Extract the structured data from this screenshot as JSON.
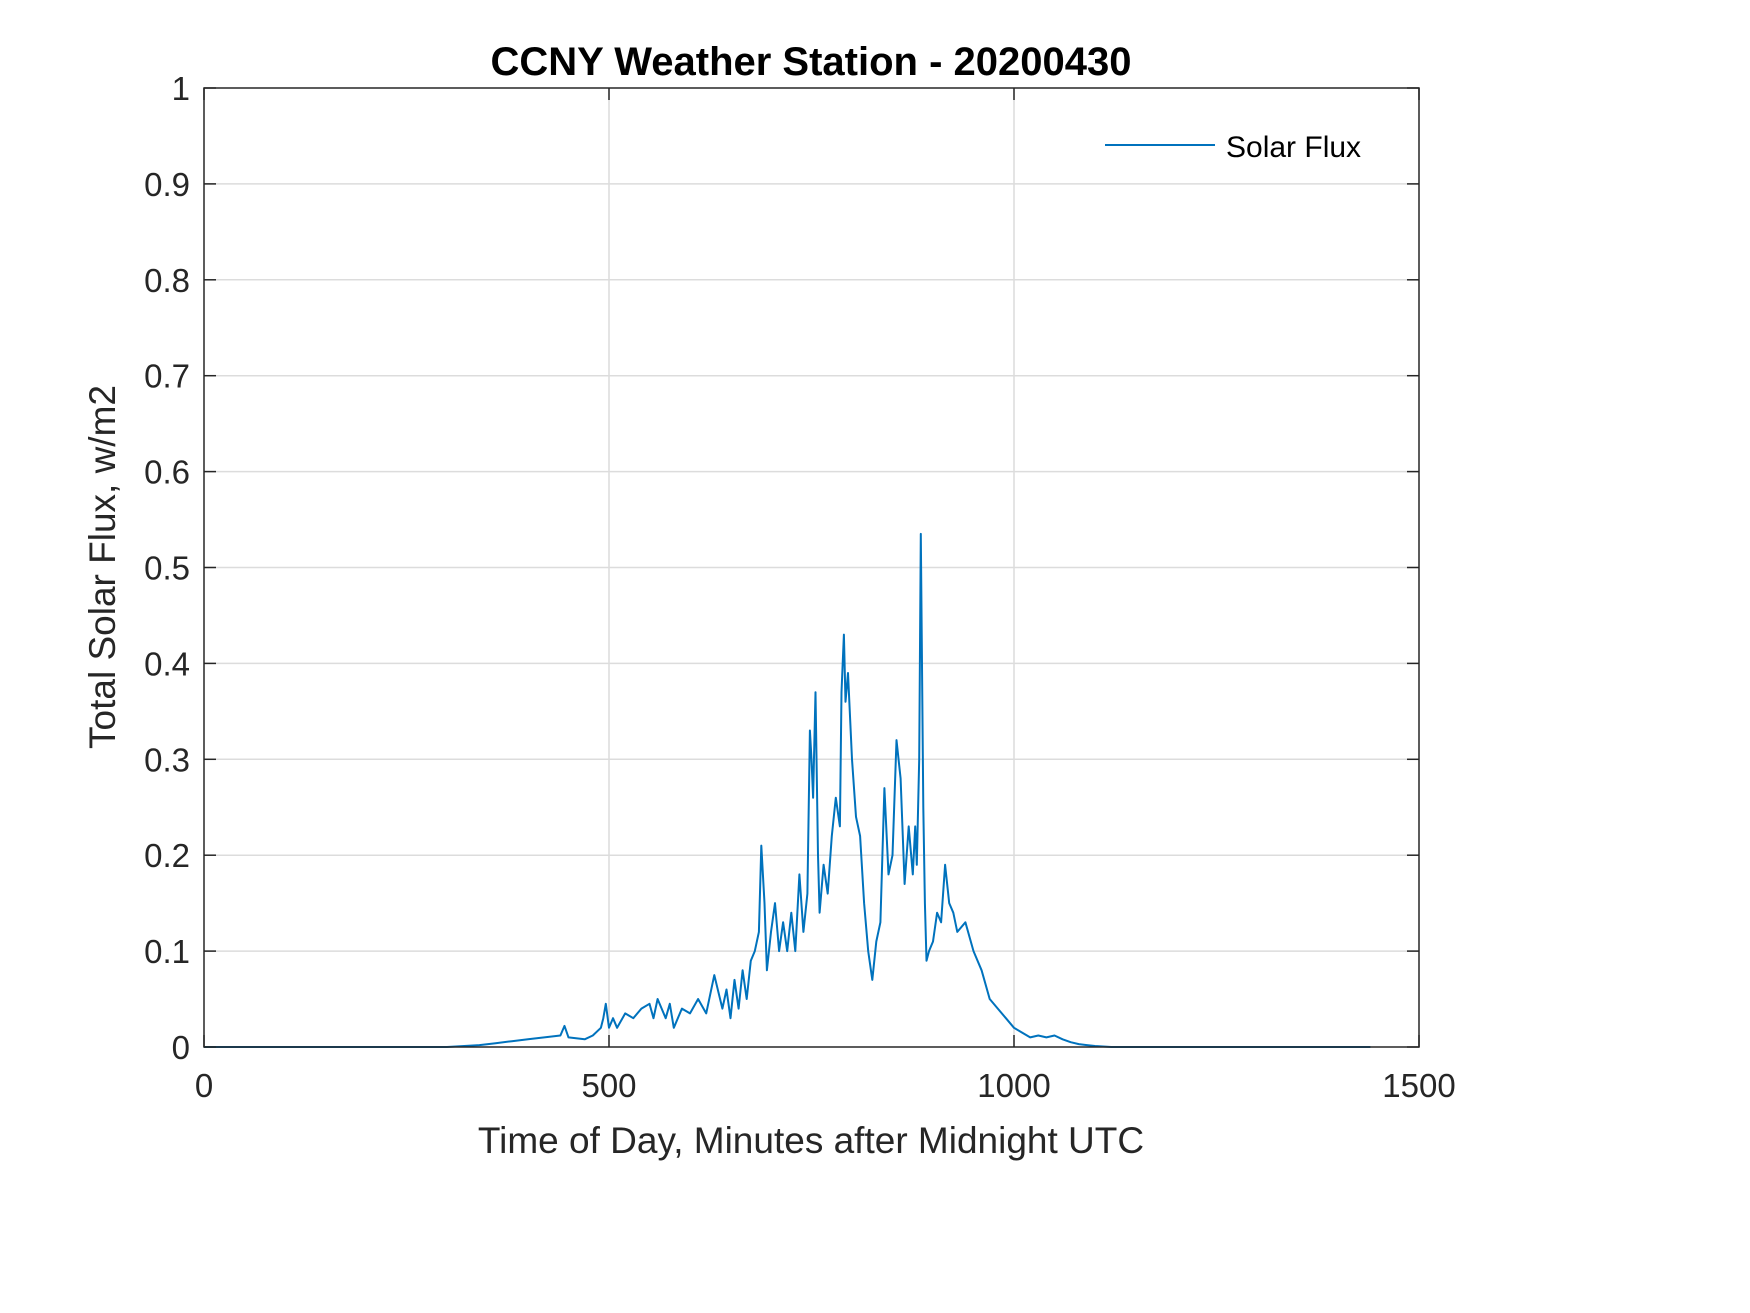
{
  "colors": {
    "series": "#0072BD",
    "axis": "#262626",
    "grid": "#dcdcdc"
  },
  "chart_data": {
    "type": "line",
    "title": "CCNY Weather Station - 20200430",
    "xlabel": "Time of Day, Minutes after Midnight UTC",
    "ylabel": "Total Solar Flux, w/m2",
    "xlim": [
      0,
      1500
    ],
    "ylim": [
      0,
      1
    ],
    "xticks": [
      0,
      500,
      1000,
      1500
    ],
    "xtick_labels": [
      "0",
      "500",
      "1000",
      "1500"
    ],
    "yticks": [
      0,
      0.1,
      0.2,
      0.3,
      0.4,
      0.5,
      0.6,
      0.7,
      0.8,
      0.9,
      1
    ],
    "ytick_labels": [
      "0",
      "0.1",
      "0.2",
      "0.3",
      "0.4",
      "0.5",
      "0.6",
      "0.7",
      "0.8",
      "0.9",
      "1"
    ],
    "grid": true,
    "legend_position": "top-right",
    "series": [
      {
        "name": "Solar Flux",
        "x": [
          0,
          300,
          340,
          360,
          380,
          400,
          420,
          440,
          445,
          450,
          470,
          480,
          490,
          493,
          496,
          500,
          505,
          510,
          520,
          530,
          540,
          550,
          555,
          560,
          570,
          575,
          580,
          590,
          600,
          610,
          620,
          630,
          640,
          645,
          650,
          655,
          660,
          665,
          670,
          675,
          680,
          685,
          688,
          690,
          692,
          695,
          700,
          705,
          710,
          715,
          720,
          725,
          730,
          735,
          740,
          745,
          748,
          750,
          752,
          755,
          758,
          760,
          765,
          770,
          775,
          780,
          785,
          787,
          790,
          792,
          795,
          800,
          805,
          810,
          815,
          820,
          825,
          830,
          835,
          840,
          845,
          850,
          855,
          860,
          865,
          870,
          875,
          878,
          880,
          883,
          885,
          888,
          890,
          892,
          895,
          900,
          905,
          910,
          915,
          920,
          925,
          930,
          940,
          950,
          960,
          970,
          980,
          990,
          1000,
          1010,
          1020,
          1030,
          1040,
          1050,
          1060,
          1070,
          1080,
          1090,
          1100,
          1120,
          1150,
          1200,
          1300,
          1440
        ],
        "values": [
          0,
          0,
          0.002,
          0.004,
          0.006,
          0.008,
          0.01,
          0.012,
          0.022,
          0.01,
          0.008,
          0.012,
          0.02,
          0.03,
          0.045,
          0.02,
          0.03,
          0.02,
          0.035,
          0.03,
          0.04,
          0.045,
          0.03,
          0.05,
          0.03,
          0.045,
          0.02,
          0.04,
          0.035,
          0.05,
          0.035,
          0.075,
          0.04,
          0.06,
          0.03,
          0.07,
          0.04,
          0.08,
          0.05,
          0.09,
          0.1,
          0.12,
          0.21,
          0.18,
          0.15,
          0.08,
          0.12,
          0.15,
          0.1,
          0.13,
          0.1,
          0.14,
          0.1,
          0.18,
          0.12,
          0.16,
          0.33,
          0.3,
          0.26,
          0.37,
          0.2,
          0.14,
          0.19,
          0.16,
          0.22,
          0.26,
          0.23,
          0.37,
          0.43,
          0.36,
          0.39,
          0.3,
          0.24,
          0.22,
          0.15,
          0.1,
          0.07,
          0.11,
          0.13,
          0.27,
          0.18,
          0.2,
          0.32,
          0.28,
          0.17,
          0.23,
          0.18,
          0.23,
          0.19,
          0.3,
          0.535,
          0.25,
          0.15,
          0.09,
          0.1,
          0.11,
          0.14,
          0.13,
          0.19,
          0.15,
          0.14,
          0.12,
          0.13,
          0.1,
          0.08,
          0.05,
          0.04,
          0.03,
          0.02,
          0.015,
          0.01,
          0.012,
          0.01,
          0.012,
          0.008,
          0.005,
          0.003,
          0.002,
          0.001,
          0,
          0,
          0,
          0,
          0
        ]
      }
    ]
  }
}
